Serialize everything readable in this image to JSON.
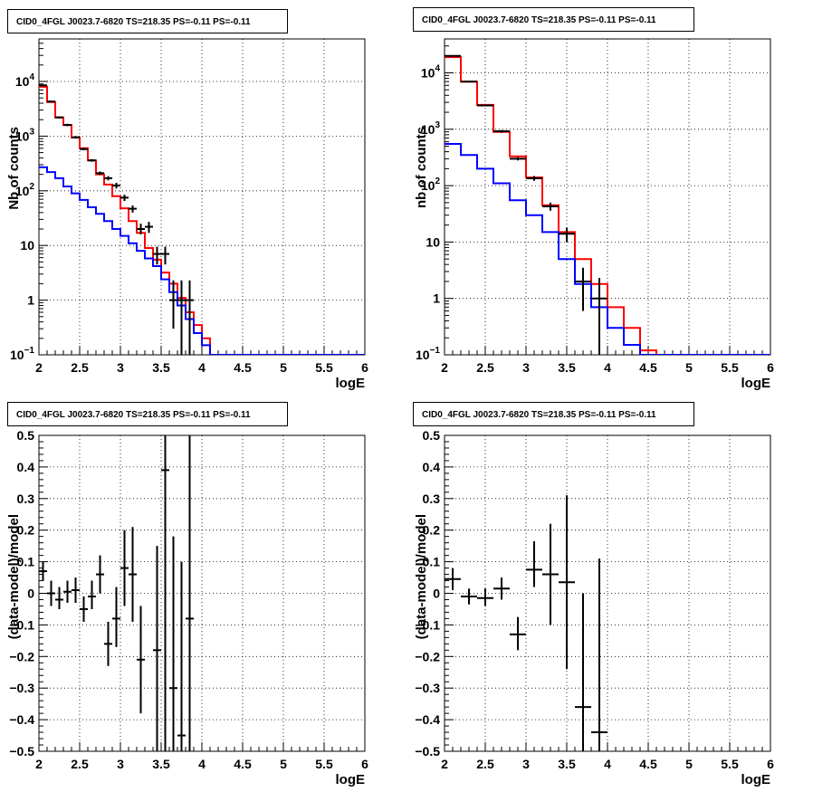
{
  "colors": {
    "data": "#000000",
    "total_model": "#ff0000",
    "component_model": "#0000ff"
  },
  "chart_data": [
    {
      "id": "top-left",
      "type": "line",
      "title": "CID0_4FGL J0023.7-6820 TS=218.35 PS=-0.11 PS=-0.11",
      "xlabel": "logE",
      "ylabel": "Nb of counts",
      "xlim": [
        2,
        6
      ],
      "ylim": [
        0.1,
        60000
      ],
      "yscale": "log",
      "grid": true,
      "x_ticks": [
        "2",
        "2.5",
        "3",
        "3.5",
        "4",
        "4.5",
        "5",
        "5.5",
        "6"
      ],
      "y_ticks": [
        {
          "v": 0.1,
          "base": "10",
          "exp": "−1"
        },
        {
          "v": 1,
          "label": "1"
        },
        {
          "v": 10,
          "label": "10"
        },
        {
          "v": 100,
          "base": "10",
          "exp": "2"
        },
        {
          "v": 1000,
          "base": "10",
          "exp": "3"
        },
        {
          "v": 10000,
          "base": "10",
          "exp": "4"
        }
      ],
      "bin_edges": [
        2,
        2.1,
        2.2,
        2.3,
        2.4,
        2.5,
        2.6,
        2.7,
        2.8,
        2.9,
        3.0,
        3.1,
        3.2,
        3.3,
        3.4,
        3.5,
        3.6,
        3.7,
        3.8,
        3.9,
        4.0,
        4.1,
        4.2,
        4.3,
        4.4,
        4.5,
        4.6,
        4.7,
        4.8,
        4.9,
        5.0,
        5.1,
        5.2,
        5.3,
        5.4,
        5.5,
        5.6,
        5.7,
        5.8,
        5.9,
        6.0
      ],
      "series": [
        {
          "role": "total_model",
          "values": [
            8000,
            4200,
            2200,
            1600,
            950,
            600,
            360,
            200,
            130,
            80,
            48,
            28,
            17,
            9,
            5.5,
            3.2,
            2.0,
            1.1,
            0.6,
            0.35,
            0.2,
            0.1,
            0.1,
            0.1,
            0.1,
            0.1,
            0.1,
            0.1,
            0.1,
            0.1,
            0.1,
            0.1,
            0.1,
            0.1,
            0.1,
            0.1,
            0.1,
            0.1,
            0.1,
            0.1
          ]
        },
        {
          "role": "component_model",
          "values": [
            270,
            220,
            170,
            120,
            90,
            68,
            50,
            38,
            28,
            20,
            15,
            11,
            8,
            5.8,
            4.2,
            2.4,
            1.4,
            0.8,
            0.45,
            0.25,
            0.15,
            0.1,
            0.1,
            0.1,
            0.1,
            0.1,
            0.1,
            0.1,
            0.1,
            0.1,
            0.1,
            0.1,
            0.1,
            0.1,
            0.1,
            0.1,
            0.1,
            0.1,
            0.1,
            0.1
          ]
        },
        {
          "role": "data",
          "points": [
            {
              "x": 2.05,
              "y": 8500,
              "xerr": 0.05,
              "ylo": 8300,
              "yhi": 8700
            },
            {
              "x": 2.15,
              "y": 4300,
              "xerr": 0.05,
              "ylo": 4150,
              "yhi": 4450
            },
            {
              "x": 2.25,
              "y": 2200,
              "xerr": 0.05,
              "ylo": 2100,
              "yhi": 2300
            },
            {
              "x": 2.35,
              "y": 1600,
              "xerr": 0.05,
              "ylo": 1520,
              "yhi": 1680
            },
            {
              "x": 2.45,
              "y": 950,
              "xerr": 0.05,
              "ylo": 900,
              "yhi": 1000
            },
            {
              "x": 2.55,
              "y": 580,
              "xerr": 0.05,
              "ylo": 550,
              "yhi": 610
            },
            {
              "x": 2.65,
              "y": 360,
              "xerr": 0.05,
              "ylo": 340,
              "yhi": 380
            },
            {
              "x": 2.75,
              "y": 210,
              "xerr": 0.05,
              "ylo": 195,
              "yhi": 225
            },
            {
              "x": 2.85,
              "y": 170,
              "xerr": 0.05,
              "ylo": 155,
              "yhi": 185
            },
            {
              "x": 2.95,
              "y": 125,
              "xerr": 0.05,
              "ylo": 110,
              "yhi": 140
            },
            {
              "x": 3.05,
              "y": 75,
              "xerr": 0.05,
              "ylo": 65,
              "yhi": 85
            },
            {
              "x": 3.15,
              "y": 47,
              "xerr": 0.05,
              "ylo": 40,
              "yhi": 54
            },
            {
              "x": 3.25,
              "y": 20,
              "xerr": 0.05,
              "ylo": 16,
              "yhi": 25
            },
            {
              "x": 3.35,
              "y": 22,
              "xerr": 0.05,
              "ylo": 17,
              "yhi": 27
            },
            {
              "x": 3.45,
              "y": 7,
              "xerr": 0.05,
              "ylo": 4.5,
              "yhi": 9.5
            },
            {
              "x": 3.55,
              "y": 7,
              "xerr": 0.05,
              "ylo": 4.5,
              "yhi": 9.5
            },
            {
              "x": 3.65,
              "y": 1,
              "xerr": 0.05,
              "ylo": 0.3,
              "yhi": 2.3
            },
            {
              "x": 3.75,
              "y": 1,
              "xerr": 0.05,
              "ylo": 0.1,
              "yhi": 2.3
            },
            {
              "x": 3.85,
              "y": 1,
              "xerr": 0.05,
              "ylo": 0.1,
              "yhi": 2.3
            }
          ]
        }
      ]
    },
    {
      "id": "top-right",
      "type": "line",
      "title": "CID0_4FGL J0023.7-6820 TS=218.35 PS=-0.11 PS=-0.11",
      "xlabel": "logE",
      "ylabel": "nb of counts",
      "xlim": [
        2,
        6
      ],
      "ylim": [
        0.1,
        40000
      ],
      "yscale": "log",
      "grid": true,
      "x_ticks": [
        "2",
        "2.5",
        "3",
        "3.5",
        "4",
        "4.5",
        "5",
        "5.5",
        "6"
      ],
      "y_ticks": [
        {
          "v": 0.1,
          "base": "10",
          "exp": "−1"
        },
        {
          "v": 1,
          "label": "1"
        },
        {
          "v": 10,
          "label": "10"
        },
        {
          "v": 100,
          "base": "10",
          "exp": "2"
        },
        {
          "v": 1000,
          "base": "10",
          "exp": "3"
        },
        {
          "v": 10000,
          "base": "10",
          "exp": "4"
        }
      ],
      "bin_edges": [
        2.0,
        2.2,
        2.4,
        2.6,
        2.8,
        3.0,
        3.2,
        3.4,
        3.6,
        3.8,
        4.0,
        4.2,
        4.4,
        4.6,
        4.8,
        5.0,
        5.2,
        5.4,
        5.6,
        5.8,
        6.0
      ],
      "series": [
        {
          "role": "total_model",
          "values": [
            19000,
            7000,
            2700,
            900,
            330,
            140,
            45,
            15,
            5,
            1.8,
            0.7,
            0.3,
            0.12,
            0.1,
            0.1,
            0.1,
            0.1,
            0.1,
            0.1,
            0.1
          ]
        },
        {
          "role": "component_model",
          "values": [
            550,
            350,
            200,
            110,
            55,
            30,
            15,
            5,
            1.8,
            0.7,
            0.3,
            0.15,
            0.1,
            0.1,
            0.1,
            0.1,
            0.1,
            0.1,
            0.1,
            0.1
          ]
        },
        {
          "role": "data",
          "points": [
            {
              "x": 2.1,
              "y": 20000,
              "xerr": 0.1,
              "ylo": 19500,
              "yhi": 20500
            },
            {
              "x": 2.3,
              "y": 7000,
              "xerr": 0.1,
              "ylo": 6800,
              "yhi": 7200
            },
            {
              "x": 2.5,
              "y": 2650,
              "xerr": 0.1,
              "ylo": 2550,
              "yhi": 2750
            },
            {
              "x": 2.7,
              "y": 920,
              "xerr": 0.1,
              "ylo": 870,
              "yhi": 970
            },
            {
              "x": 2.9,
              "y": 300,
              "xerr": 0.1,
              "ylo": 280,
              "yhi": 320
            },
            {
              "x": 3.1,
              "y": 135,
              "xerr": 0.1,
              "ylo": 122,
              "yhi": 148
            },
            {
              "x": 3.3,
              "y": 43,
              "xerr": 0.1,
              "ylo": 36,
              "yhi": 50
            },
            {
              "x": 3.5,
              "y": 14,
              "xerr": 0.1,
              "ylo": 10,
              "yhi": 18
            },
            {
              "x": 3.7,
              "y": 2,
              "xerr": 0.1,
              "ylo": 0.6,
              "yhi": 3.5
            },
            {
              "x": 3.9,
              "y": 1,
              "xerr": 0.1,
              "ylo": 0.1,
              "yhi": 2.3
            }
          ]
        }
      ]
    },
    {
      "id": "bottom-left",
      "type": "scatter",
      "title": "CID0_4FGL J0023.7-6820 TS=218.35 PS=-0.11 PS=-0.11",
      "xlabel": "logE",
      "ylabel": "(data-model)/model",
      "xlim": [
        2,
        6
      ],
      "ylim": [
        -0.5,
        0.5
      ],
      "grid": true,
      "x_ticks": [
        "2",
        "2.5",
        "3",
        "3.5",
        "4",
        "4.5",
        "5",
        "5.5",
        "6"
      ],
      "y_ticks": [
        "−0.5",
        "−0.4",
        "−0.3",
        "−0.2",
        "−0.1",
        "0",
        "0.1",
        "0.2",
        "0.3",
        "0.4",
        "0.5"
      ],
      "points": [
        {
          "x": 2.05,
          "y": 0.07,
          "xerr": 0.05,
          "ylo": 0.04,
          "yhi": 0.1
        },
        {
          "x": 2.15,
          "y": 0.0,
          "xerr": 0.05,
          "ylo": -0.04,
          "yhi": 0.04
        },
        {
          "x": 2.25,
          "y": -0.02,
          "xerr": 0.05,
          "ylo": -0.05,
          "yhi": 0.02
        },
        {
          "x": 2.35,
          "y": 0.005,
          "xerr": 0.05,
          "ylo": -0.03,
          "yhi": 0.04
        },
        {
          "x": 2.45,
          "y": 0.01,
          "xerr": 0.05,
          "ylo": -0.03,
          "yhi": 0.05
        },
        {
          "x": 2.55,
          "y": -0.05,
          "xerr": 0.05,
          "ylo": -0.09,
          "yhi": -0.01
        },
        {
          "x": 2.65,
          "y": -0.01,
          "xerr": 0.05,
          "ylo": -0.05,
          "yhi": 0.04
        },
        {
          "x": 2.75,
          "y": 0.06,
          "xerr": 0.05,
          "ylo": 0.0,
          "yhi": 0.12
        },
        {
          "x": 2.85,
          "y": -0.16,
          "xerr": 0.05,
          "ylo": -0.23,
          "yhi": -0.09
        },
        {
          "x": 2.95,
          "y": -0.08,
          "xerr": 0.05,
          "ylo": -0.17,
          "yhi": 0.02
        },
        {
          "x": 3.05,
          "y": 0.08,
          "xerr": 0.05,
          "ylo": -0.04,
          "yhi": 0.2
        },
        {
          "x": 3.15,
          "y": 0.06,
          "xerr": 0.05,
          "ylo": -0.09,
          "yhi": 0.21
        },
        {
          "x": 3.25,
          "y": -0.21,
          "xerr": 0.05,
          "ylo": -0.38,
          "yhi": -0.04
        },
        {
          "x": 3.45,
          "y": -0.18,
          "xerr": 0.05,
          "ylo": -0.5,
          "yhi": 0.15
        },
        {
          "x": 3.55,
          "y": 0.39,
          "xerr": 0.05,
          "ylo": -0.5,
          "yhi": 0.5
        },
        {
          "x": 3.65,
          "y": -0.3,
          "xerr": 0.05,
          "ylo": -0.5,
          "yhi": 0.18
        },
        {
          "x": 3.75,
          "y": -0.45,
          "xerr": 0.05,
          "ylo": -0.5,
          "yhi": 0.1
        },
        {
          "x": 3.85,
          "y": -0.08,
          "xerr": 0.05,
          "ylo": -0.5,
          "yhi": 0.5
        }
      ]
    },
    {
      "id": "bottom-right",
      "type": "scatter",
      "title": "CID0_4FGL J0023.7-6820 TS=218.35 PS=-0.11 PS=-0.11",
      "xlabel": "logE",
      "ylabel": "(data-model)/model",
      "xlim": [
        2,
        6
      ],
      "ylim": [
        -0.5,
        0.5
      ],
      "grid": true,
      "x_ticks": [
        "2",
        "2.5",
        "3",
        "3.5",
        "4",
        "4.5",
        "5",
        "5.5",
        "6"
      ],
      "y_ticks": [
        "−0.5",
        "−0.4",
        "−0.3",
        "−0.2",
        "−0.1",
        "0",
        "0.1",
        "0.2",
        "0.3",
        "0.4",
        "0.5"
      ],
      "points": [
        {
          "x": 2.1,
          "y": 0.045,
          "xerr": 0.1,
          "ylo": 0.01,
          "yhi": 0.08
        },
        {
          "x": 2.3,
          "y": -0.01,
          "xerr": 0.1,
          "ylo": -0.035,
          "yhi": 0.015
        },
        {
          "x": 2.5,
          "y": -0.015,
          "xerr": 0.1,
          "ylo": -0.04,
          "yhi": 0.015
        },
        {
          "x": 2.7,
          "y": 0.015,
          "xerr": 0.1,
          "ylo": -0.02,
          "yhi": 0.05
        },
        {
          "x": 2.9,
          "y": -0.13,
          "xerr": 0.1,
          "ylo": -0.18,
          "yhi": -0.075
        },
        {
          "x": 3.1,
          "y": 0.075,
          "xerr": 0.1,
          "ylo": 0.02,
          "yhi": 0.165
        },
        {
          "x": 3.3,
          "y": 0.06,
          "xerr": 0.1,
          "ylo": -0.1,
          "yhi": 0.22
        },
        {
          "x": 3.5,
          "y": 0.035,
          "xerr": 0.1,
          "ylo": -0.24,
          "yhi": 0.31
        },
        {
          "x": 3.7,
          "y": -0.36,
          "xerr": 0.1,
          "ylo": -0.5,
          "yhi": 0.0
        },
        {
          "x": 3.9,
          "y": -0.44,
          "xerr": 0.1,
          "ylo": -0.5,
          "yhi": 0.11
        }
      ]
    }
  ]
}
